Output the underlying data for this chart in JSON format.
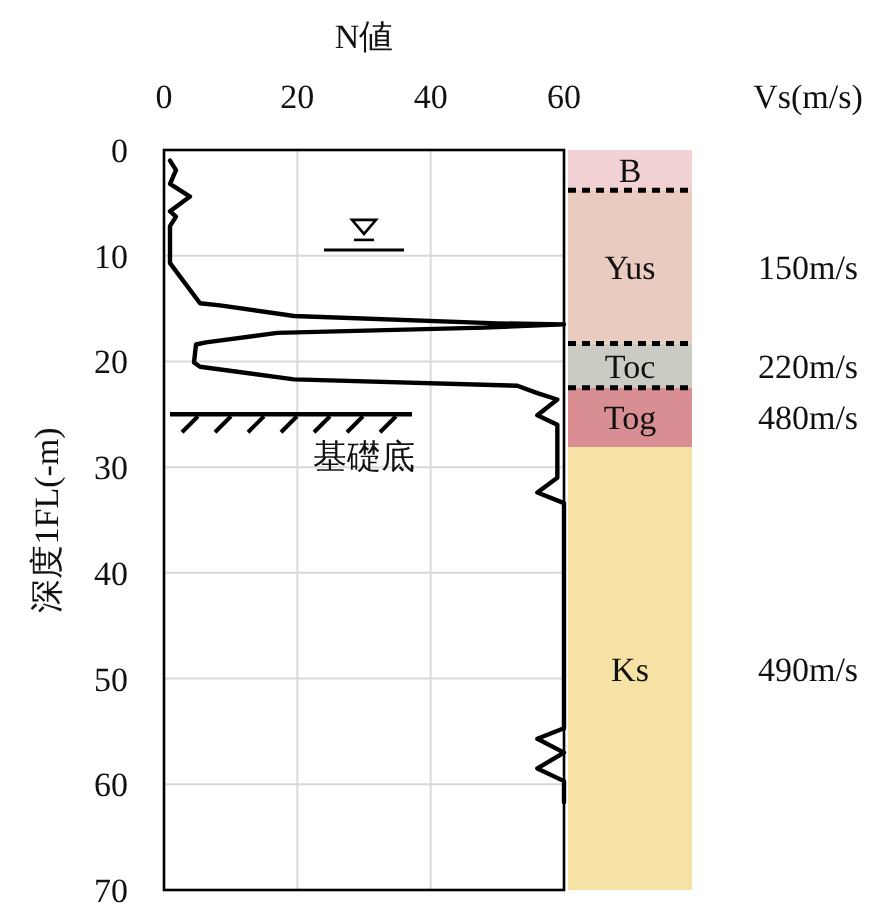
{
  "chart_data": [
    {
      "type": "line",
      "xlabel": "N値",
      "ylabel": "深度1FL(-m)",
      "xlim": [
        0,
        60
      ],
      "xticks": [
        0,
        20,
        40,
        60
      ],
      "ylim": [
        70,
        0
      ],
      "yticks": [
        0,
        10,
        20,
        30,
        40,
        50,
        60,
        70
      ],
      "grid": true,
      "marker": "none",
      "line_style": "solid",
      "legend": false,
      "series": [
        {
          "color": "#000000",
          "x": [
            0.9,
            1.8,
            0.9,
            3.9,
            0.9,
            1.8,
            0.9,
            0.9,
            5.4,
            8.4,
            19.5,
            50,
            60,
            48,
            17,
            6.3,
            4.8,
            4.5,
            5.4,
            19.5,
            53,
            56,
            59,
            56,
            59,
            59,
            56,
            60,
            60,
            56,
            60,
            56,
            60,
            60
          ],
          "values": [
            1,
            1.9,
            3.2,
            4.4,
            5.8,
            6.3,
            7.2,
            10.7,
            14.5,
            14.7,
            15.7,
            16.4,
            16.5,
            16.8,
            17.3,
            18.2,
            18.4,
            20.1,
            20.5,
            21.7,
            22.3,
            23,
            23.6,
            25.1,
            26,
            31,
            32.4,
            33.4,
            54.7,
            55.7,
            57,
            58.5,
            59.7,
            61.7
          ]
        }
      ],
      "annotations": [
        "基礎底"
      ]
    },
    {
      "type": "bar",
      "stacked": true,
      "categories": [
        null
      ],
      "ylim": [
        70,
        0
      ],
      "legend": false,
      "series": [
        {
          "name": "B",
          "color": "#f2d2d4",
          "values": [
            3.8
          ]
        },
        {
          "name": "Yus",
          "color": "#eacbc0",
          "values": [
            14.5
          ],
          "line_style": "dashed"
        },
        {
          "name": "Toc",
          "color": "#cbcbc3",
          "values": [
            4.2
          ],
          "line_style": "dashed"
        },
        {
          "name": "Tog",
          "color": "#d98e94",
          "values": [
            5.6
          ],
          "line_style": "dashed"
        },
        {
          "name": "Ks",
          "color": "#f6e2a4",
          "values": [
            41.9
          ]
        }
      ],
      "annotations": [
        "Vs(m/s)",
        "150m/s",
        "220m/s",
        "480m/s",
        "490m/s"
      ]
    }
  ]
}
